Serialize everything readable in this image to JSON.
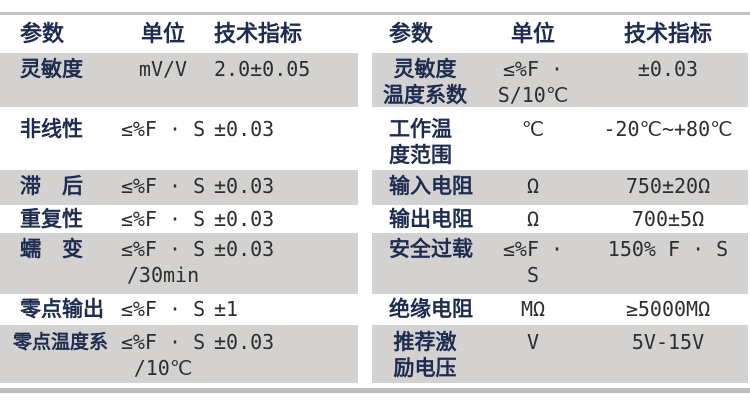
{
  "colors": {
    "heading_navy": "#1e2c50",
    "value_text": "#2e2e2e",
    "row_gray": "#d3d2d0",
    "rule_gray": "#c6c6c6"
  },
  "left_table": {
    "header": {
      "param": "参数",
      "unit": "单位",
      "value": "技术指标"
    },
    "rows": [
      {
        "param": "灵敏度",
        "unit": "mV/V",
        "value": "2.0±0.05"
      },
      {
        "param": "非线性",
        "unit": "≤%F · S",
        "value": "±0.03"
      },
      {
        "param": "滞　后",
        "unit": "≤%F · S",
        "value": "±0.03"
      },
      {
        "param": "重复性",
        "unit": "≤%F · S",
        "value": "±0.03"
      },
      {
        "param": "蠕　变",
        "unit": "≤%F · S\n/30min",
        "value": "±0.03"
      },
      {
        "param": "零点输出",
        "unit": "≤%F · S",
        "value": "±1"
      },
      {
        "param": "零点温度系",
        "unit": "≤%F · S\n/10℃",
        "value": "±0.03"
      }
    ]
  },
  "right_table": {
    "header": {
      "param": "参数",
      "unit": "单位",
      "value": "技术指标"
    },
    "rows": [
      {
        "param": "灵敏度\n温度系数",
        "unit": "≤%F ·\nS/10℃",
        "value": "±0.03"
      },
      {
        "param": "工作温\n度范围",
        "unit": "℃",
        "value": "-20℃~+80℃"
      },
      {
        "param": "输入电阻",
        "unit": "Ω",
        "value": "750±20Ω"
      },
      {
        "param": "输出电阻",
        "unit": "Ω",
        "value": "700±5Ω"
      },
      {
        "param": "安全过载",
        "unit": "≤%F · S",
        "value": "150% F · S"
      },
      {
        "param": "绝缘电阻",
        "unit": "MΩ",
        "value": "≥5000MΩ"
      },
      {
        "param": "推荐激\n励电压",
        "unit": "V",
        "value": "5V-15V"
      }
    ]
  }
}
